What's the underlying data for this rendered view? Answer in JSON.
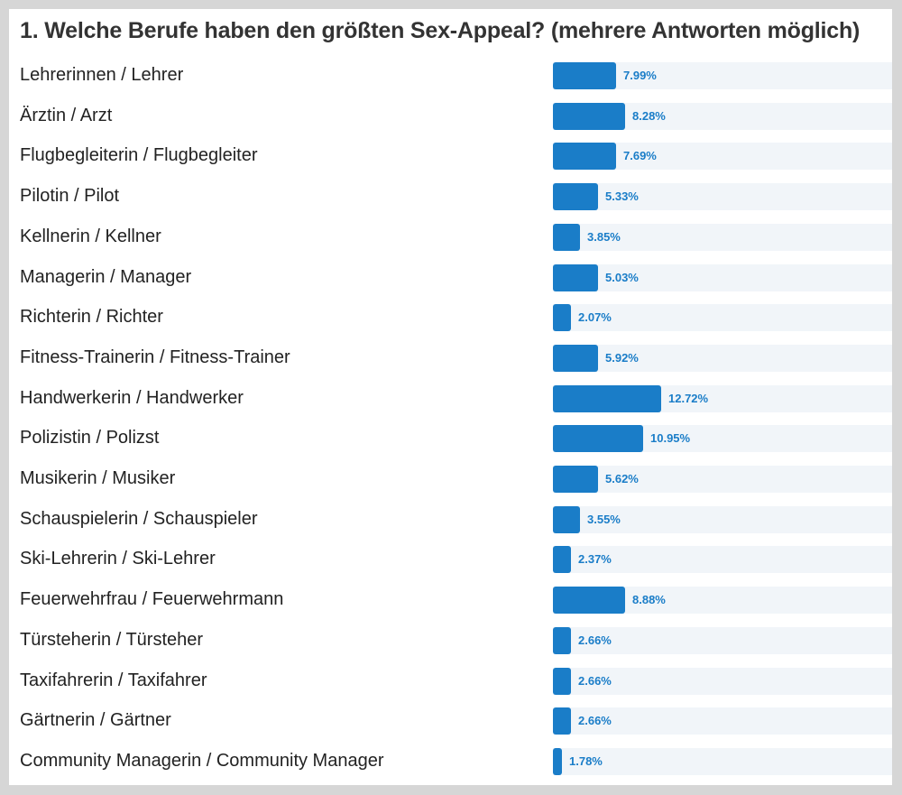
{
  "chart_data": {
    "type": "bar",
    "orientation": "horizontal",
    "title": "1. Welche Berufe haben den größten Sex-Appeal? (mehrere Antworten möglich)",
    "unit": "%",
    "colors": {
      "bar": "#1a7dc8",
      "track": "#f1f5f9",
      "background": "#d6d6d6"
    },
    "categories": [
      "Lehrerinnen / Lehrer",
      "Ärztin / Arzt",
      "Flugbegleiterin / Flugbegleiter",
      "Pilotin / Pilot",
      "Kellnerin / Kellner",
      "Managerin / Manager",
      "Richterin / Richter",
      "Fitness-Trainerin / Fitness-Trainer",
      "Handwerkerin / Handwerker",
      "Polizistin / Polizst",
      "Musikerin / Musiker",
      "Schauspielerin / Schauspieler",
      "Ski-Lehrerin / Ski-Lehrer",
      "Feuerwehrfrau / Feuerwehrmann",
      "Türsteherin / Türsteher",
      "Taxifahrerin / Taxifahrer",
      "Gärtnerin / Gärtner",
      "Community Managerin / Community Manager"
    ],
    "values": [
      7.99,
      8.28,
      7.69,
      5.33,
      3.85,
      5.03,
      2.07,
      5.92,
      12.72,
      10.95,
      5.62,
      3.55,
      2.37,
      8.88,
      2.66,
      2.66,
      2.66,
      1.78
    ],
    "value_labels": [
      "7.99%",
      "8.28%",
      "7.69%",
      "5.33%",
      "3.85%",
      "5.03%",
      "2.07%",
      "5.92%",
      "12.72%",
      "10.95%",
      "5.62%",
      "3.55%",
      "2.37%",
      "8.88%",
      "2.66%",
      "2.66%",
      "2.66%",
      "1.78%"
    ]
  }
}
